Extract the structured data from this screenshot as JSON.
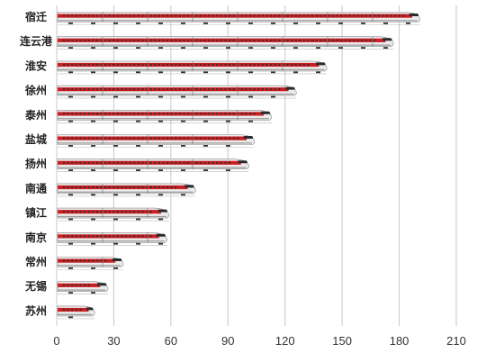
{
  "chart_data": {
    "type": "bar",
    "orientation": "horizontal",
    "title": "",
    "xlabel": "",
    "ylabel": "",
    "categories": [
      "宿迁",
      "连云港",
      "淮安",
      "徐州",
      "泰州",
      "盐城",
      "扬州",
      "南通",
      "镇江",
      "南京",
      "常州",
      "无锡",
      "苏州"
    ],
    "values": [
      191,
      177,
      142,
      126,
      113,
      104,
      101,
      73,
      59,
      58,
      35,
      27,
      20
    ],
    "xlim": [
      0,
      210
    ],
    "xticks": [
      "0",
      "30",
      "60",
      "90",
      "120",
      "150",
      "180",
      "210"
    ],
    "grid": true,
    "legend": "none",
    "bar_style": "high-speed-train",
    "colors": {
      "train_body": "#ebebeb",
      "train_stripe": "#cc1f24",
      "window": "#2b2b2b",
      "grid": "#c8c8c8",
      "text": "#222222"
    }
  }
}
